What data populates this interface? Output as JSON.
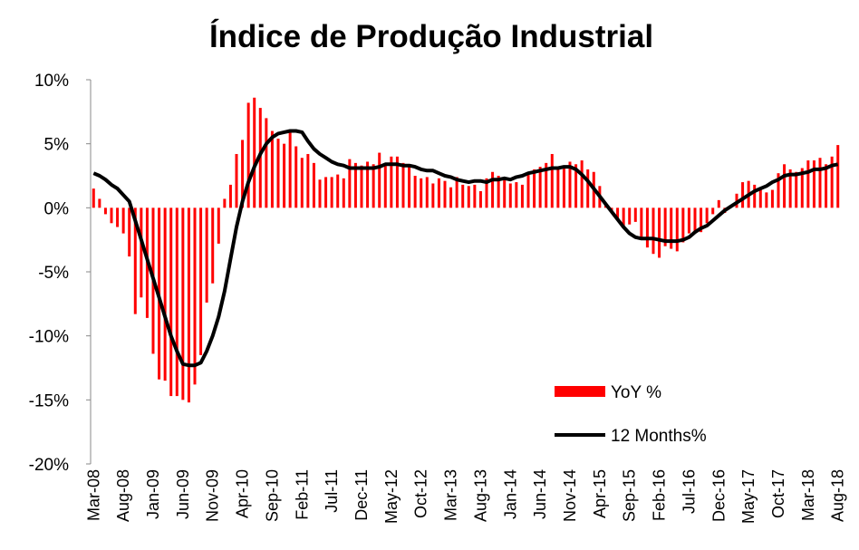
{
  "chart_data": {
    "type": "bar_line",
    "title": "Índice de Produção Industrial",
    "categories": [
      "Mar-08",
      null,
      null,
      null,
      null,
      "Aug-08",
      null,
      null,
      null,
      null,
      "Jan-09",
      null,
      null,
      null,
      null,
      "Jun-09",
      null,
      null,
      null,
      null,
      "Nov-09",
      null,
      null,
      null,
      null,
      "Apr-10",
      null,
      null,
      null,
      null,
      "Sep-10",
      null,
      null,
      null,
      null,
      "Feb-11",
      null,
      null,
      null,
      null,
      "Jul-11",
      null,
      null,
      null,
      null,
      "Dec-11",
      null,
      null,
      null,
      null,
      "May-12",
      null,
      null,
      null,
      null,
      "Oct-12",
      null,
      null,
      null,
      null,
      "Mar-13",
      null,
      null,
      null,
      null,
      "Aug-13",
      null,
      null,
      null,
      null,
      "Jan-14",
      null,
      null,
      null,
      null,
      "Jun-14",
      null,
      null,
      null,
      null,
      "Nov-14",
      null,
      null,
      null,
      null,
      "Apr-15",
      null,
      null,
      null,
      null,
      "Sep-15",
      null,
      null,
      null,
      null,
      "Feb-16",
      null,
      null,
      null,
      null,
      "Jul-16",
      null,
      null,
      null,
      null,
      "Dec-16",
      null,
      null,
      null,
      null,
      "May-17",
      null,
      null,
      null,
      null,
      "Oct-17",
      null,
      null,
      null,
      null,
      "Mar-18",
      null,
      null,
      null,
      null,
      "Aug-18"
    ],
    "series": [
      {
        "name": "YoY %",
        "type": "bar",
        "color": "#ff0000",
        "values": [
          1.5,
          0.7,
          -0.5,
          -1.2,
          -1.5,
          -2.0,
          -3.8,
          -8.3,
          -7.0,
          -8.6,
          -11.4,
          -13.4,
          -13.5,
          -14.7,
          -14.7,
          -15.0,
          -15.2,
          -13.8,
          -11.5,
          -7.4,
          -5.9,
          -2.8,
          0.7,
          1.8,
          4.2,
          5.3,
          8.2,
          8.6,
          7.8,
          7.0,
          6.0,
          5.4,
          5.0,
          6.0,
          4.8,
          3.9,
          4.2,
          3.5,
          2.2,
          2.4,
          2.4,
          2.6,
          2.3,
          3.8,
          3.5,
          3.3,
          3.6,
          3.4,
          4.3,
          3.3,
          4.0,
          4.0,
          3.5,
          3.4,
          2.5,
          2.3,
          2.4,
          1.9,
          2.3,
          2.1,
          1.6,
          2.4,
          1.8,
          1.7,
          1.8,
          1.3,
          2.3,
          2.8,
          2.5,
          2.2,
          1.9,
          2.0,
          1.8,
          2.8,
          3.0,
          3.2,
          3.5,
          4.2,
          3.0,
          3.3,
          3.6,
          3.4,
          3.7,
          3.0,
          2.8,
          1.7,
          0.4,
          -0.3,
          -0.9,
          -1.6,
          -1.3,
          -1.1,
          -2.4,
          -3.1,
          -3.6,
          -3.9,
          -3.0,
          -3.2,
          -3.4,
          -2.7,
          -2.0,
          -2.0,
          -1.9,
          -1.2,
          -0.5,
          0.6,
          -0.4,
          0.0,
          1.1,
          2.0,
          2.1,
          1.8,
          1.5,
          1.2,
          1.4,
          2.7,
          3.4,
          3.0,
          2.8,
          3.1,
          3.7,
          3.7,
          3.9,
          3.4,
          4.0,
          4.9
        ]
      },
      {
        "name": "12 Months%",
        "type": "line",
        "color": "#000000",
        "values": [
          2.7,
          2.5,
          2.2,
          1.8,
          1.5,
          1.0,
          0.5,
          -1.0,
          -2.5,
          -4.0,
          -5.5,
          -7.0,
          -8.5,
          -10.0,
          -11.2,
          -12.2,
          -12.3,
          -12.3,
          -12.1,
          -11.2,
          -10.0,
          -8.5,
          -6.5,
          -4.0,
          -1.5,
          0.5,
          2.0,
          3.2,
          4.2,
          5.0,
          5.5,
          5.8,
          5.9,
          6.0,
          6.0,
          5.9,
          5.2,
          4.6,
          4.2,
          3.9,
          3.6,
          3.4,
          3.3,
          3.1,
          3.1,
          3.1,
          3.1,
          3.1,
          3.2,
          3.4,
          3.4,
          3.4,
          3.3,
          3.3,
          3.2,
          3.0,
          2.9,
          2.9,
          2.7,
          2.5,
          2.4,
          2.2,
          2.1,
          2.0,
          2.1,
          2.1,
          2.0,
          2.2,
          2.2,
          2.3,
          2.2,
          2.4,
          2.5,
          2.7,
          2.8,
          2.9,
          3.0,
          3.1,
          3.1,
          3.2,
          3.2,
          3.0,
          2.6,
          2.1,
          1.5,
          0.9,
          0.3,
          -0.3,
          -0.9,
          -1.5,
          -2.0,
          -2.3,
          -2.4,
          -2.4,
          -2.4,
          -2.5,
          -2.6,
          -2.6,
          -2.6,
          -2.5,
          -2.3,
          -1.9,
          -1.6,
          -1.4,
          -1.0,
          -0.6,
          -0.2,
          0.1,
          0.4,
          0.7,
          1.0,
          1.3,
          1.5,
          1.7,
          2.0,
          2.2,
          2.5,
          2.6,
          2.6,
          2.7,
          2.8,
          3.0,
          3.0,
          3.1,
          3.3,
          3.4
        ]
      }
    ],
    "ylim": [
      -20,
      10
    ],
    "yticks": [
      {
        "value": -20,
        "label": "-20%"
      },
      {
        "value": -15,
        "label": "-15%"
      },
      {
        "value": -10,
        "label": "-10%"
      },
      {
        "value": -5,
        "label": "-5%"
      },
      {
        "value": 0,
        "label": "0%"
      },
      {
        "value": 5,
        "label": "5%"
      },
      {
        "value": 10,
        "label": "10%"
      }
    ],
    "legend": "lower right"
  }
}
